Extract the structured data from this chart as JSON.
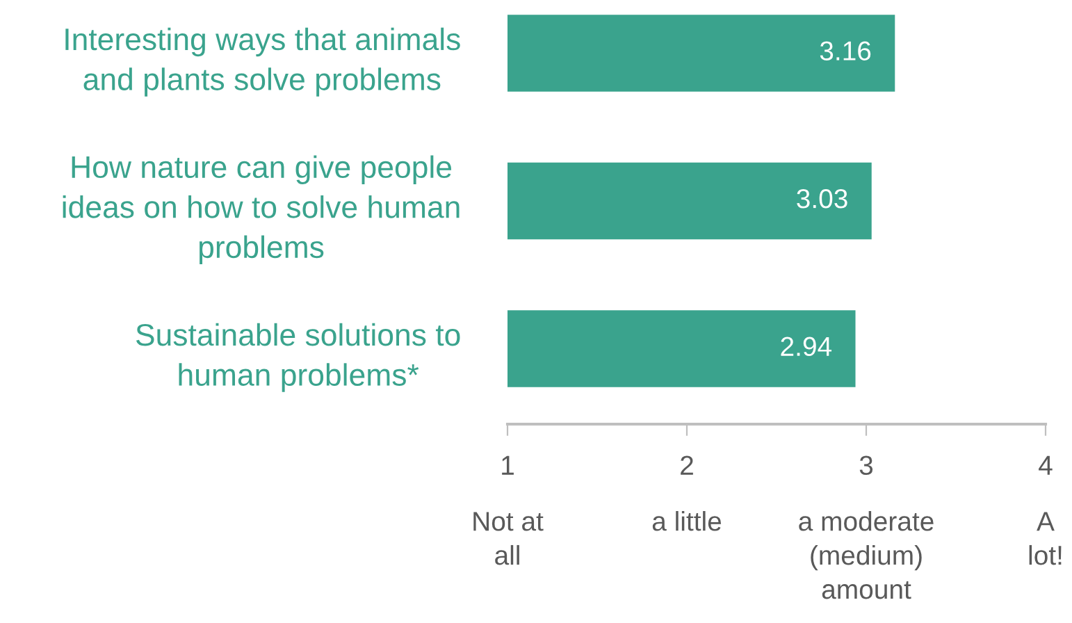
{
  "chart_data": {
    "type": "bar",
    "orientation": "horizontal",
    "categories": [
      "Interesting ways that animals\nand plants solve problems",
      "How nature can give people\nideas on how to solve human\nproblems",
      "Sustainable solutions to\nhuman problems*"
    ],
    "values": [
      3.16,
      3.03,
      2.94
    ],
    "color": "#3aa38d",
    "xlim": [
      1,
      4
    ],
    "xticks": [
      1,
      2,
      3,
      4
    ],
    "annotations": [
      "Not at\nall",
      "a little",
      "a moderate\n(medium)\namount",
      "A\nlot!"
    ],
    "data_labels": true
  }
}
